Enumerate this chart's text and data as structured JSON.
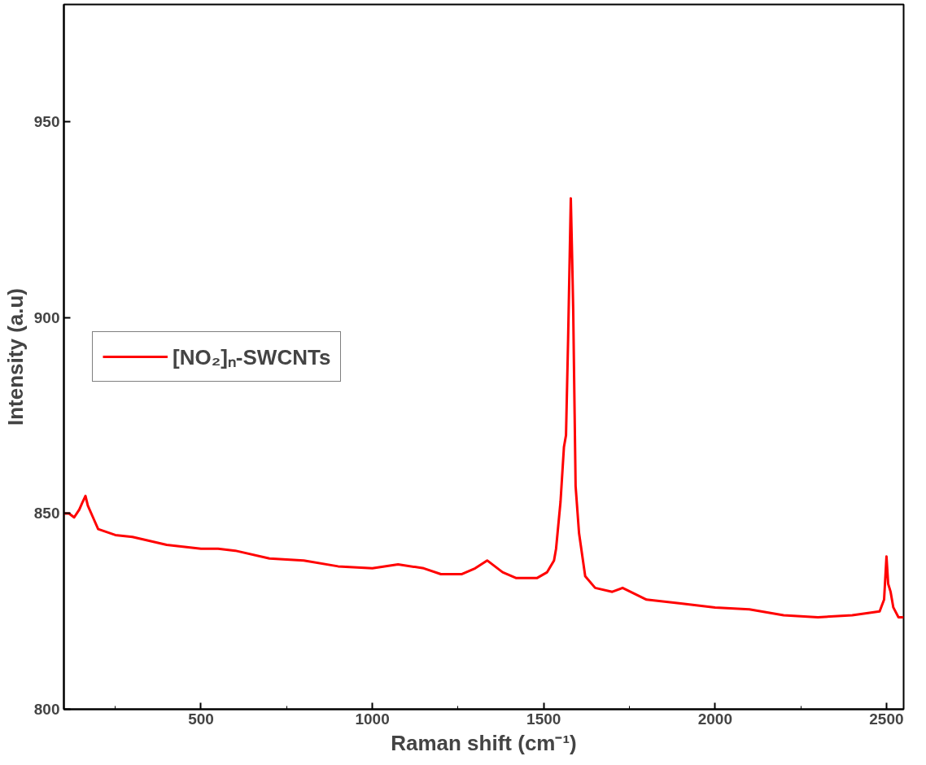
{
  "chart_data": {
    "type": "line",
    "xlabel": "Raman shift (cm⁻¹)",
    "ylabel": "Intensity (a.u)",
    "xlim": [
      100,
      2550
    ],
    "ylim": [
      800,
      980
    ],
    "xticks": [
      500,
      1000,
      1500,
      2000,
      2500
    ],
    "yticks": [
      800,
      850,
      900,
      950
    ],
    "grid": false,
    "legend": "left",
    "marker": "none",
    "line_style": "solid",
    "series": [
      {
        "name": "[NO₂]ₙ-SWCNTs",
        "color": "#ff0000",
        "x": [
          100,
          115,
          130,
          145,
          155,
          163,
          170,
          185,
          200,
          250,
          300,
          400,
          500,
          550,
          600,
          700,
          800,
          900,
          1000,
          1075,
          1150,
          1200,
          1260,
          1300,
          1335,
          1380,
          1420,
          1480,
          1510,
          1530,
          1536,
          1549,
          1559,
          1565,
          1571,
          1579,
          1583,
          1586,
          1593,
          1603,
          1621,
          1650,
          1700,
          1730,
          1800,
          1900,
          2000,
          2100,
          2200,
          2300,
          2400,
          2480,
          2493,
          2500,
          2505,
          2512,
          2520,
          2535,
          2550
        ],
        "values": [
          850,
          850,
          849,
          851,
          853,
          854.5,
          852,
          849,
          846,
          844.5,
          844,
          842,
          841,
          841,
          840.5,
          838.5,
          838,
          836.5,
          836,
          837,
          836,
          834.5,
          834.5,
          836,
          838,
          835,
          833.5,
          833.5,
          835,
          838,
          841,
          853,
          867,
          870,
          894,
          930.5,
          915,
          902,
          857,
          845,
          834,
          831,
          830,
          831,
          828,
          827,
          826,
          825.5,
          824,
          823.5,
          824,
          825,
          828,
          839,
          832,
          830,
          826,
          823.5,
          823.5
        ]
      }
    ]
  }
}
